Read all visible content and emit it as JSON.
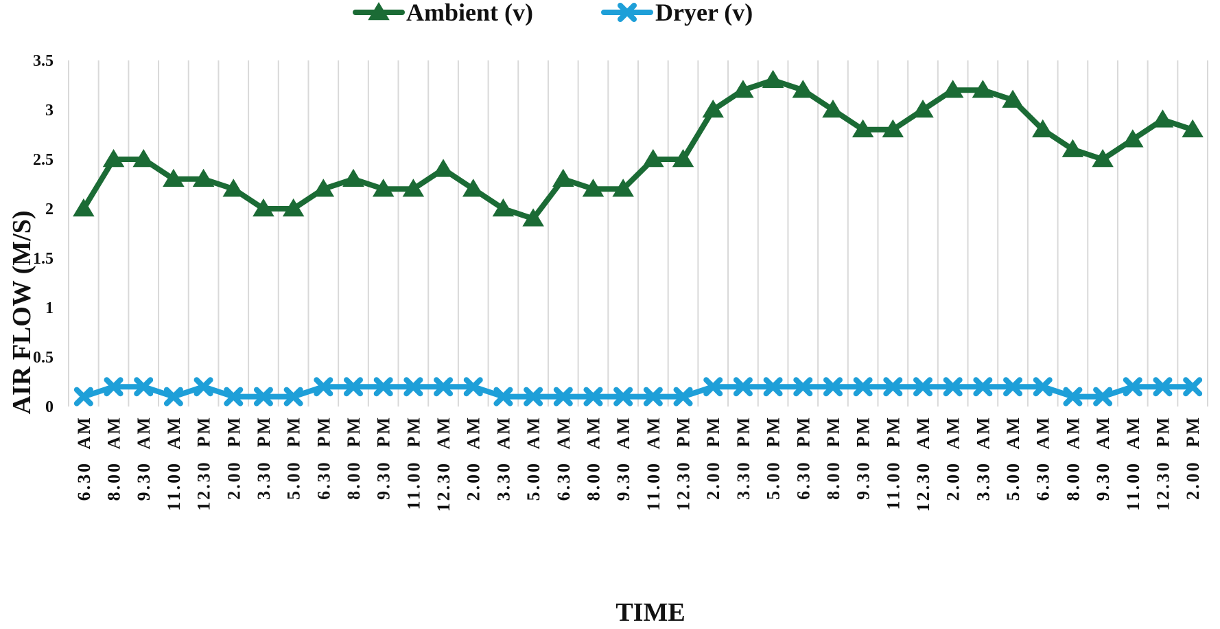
{
  "chart_data": {
    "type": "line",
    "title": "",
    "xlabel": "TIME",
    "ylabel": "AIR FLOW (M/S)",
    "ylim": [
      0,
      3.5
    ],
    "yticks": [
      "0",
      "0.5",
      "1",
      "1.5",
      "2",
      "2.5",
      "3",
      "3.5"
    ],
    "grid": "vertical",
    "legend_position": "top-center",
    "categories": [
      "6.30  AM",
      "8.00  AM",
      "9.30  AM",
      "11.00  AM",
      "12.30  PM",
      "2.00  PM",
      "3.30  PM",
      "5.00  PM",
      "6.30  PM",
      "8.00  PM",
      "9.30  PM",
      "11.00  PM",
      "12.30  AM",
      "2.00  AM",
      "3.30  AM",
      "5.00  AM",
      "6.30  AM",
      "8.00  AM",
      "9.30  AM",
      "11.00  AM",
      "12.30  PM",
      "2.00  PM",
      "3.30  PM",
      "5.00  PM",
      "6.30  PM",
      "8.00  PM",
      "9.30  PM",
      "11.00  PM",
      "12.30  AM",
      "2.00  AM",
      "3.30  AM",
      "5.00  AM",
      "6.30  AM",
      "8.00  AM",
      "9.30  AM",
      "11.00  AM",
      "12.30  PM",
      "2.00  PM"
    ],
    "series": [
      {
        "name": "Ambient (v)",
        "color": "#1b6b35",
        "marker": "triangle",
        "values": [
          2.0,
          2.5,
          2.5,
          2.3,
          2.3,
          2.2,
          2.0,
          2.0,
          2.2,
          2.3,
          2.2,
          2.2,
          2.4,
          2.2,
          2.0,
          1.9,
          2.3,
          2.2,
          2.2,
          2.5,
          2.5,
          3.0,
          3.2,
          3.3,
          3.2,
          3.0,
          2.8,
          2.8,
          3.0,
          3.2,
          3.2,
          3.1,
          2.8,
          2.6,
          2.5,
          2.7,
          2.9,
          2.8
        ]
      },
      {
        "name": "Dryer (v)",
        "color": "#1e9fd8",
        "marker": "x",
        "values": [
          0.1,
          0.2,
          0.2,
          0.1,
          0.2,
          0.1,
          0.1,
          0.1,
          0.2,
          0.2,
          0.2,
          0.2,
          0.2,
          0.2,
          0.1,
          0.1,
          0.1,
          0.1,
          0.1,
          0.1,
          0.1,
          0.2,
          0.2,
          0.2,
          0.2,
          0.2,
          0.2,
          0.2,
          0.2,
          0.2,
          0.2,
          0.2,
          0.2,
          0.1,
          0.1,
          0.2,
          0.2,
          0.2
        ]
      }
    ]
  }
}
